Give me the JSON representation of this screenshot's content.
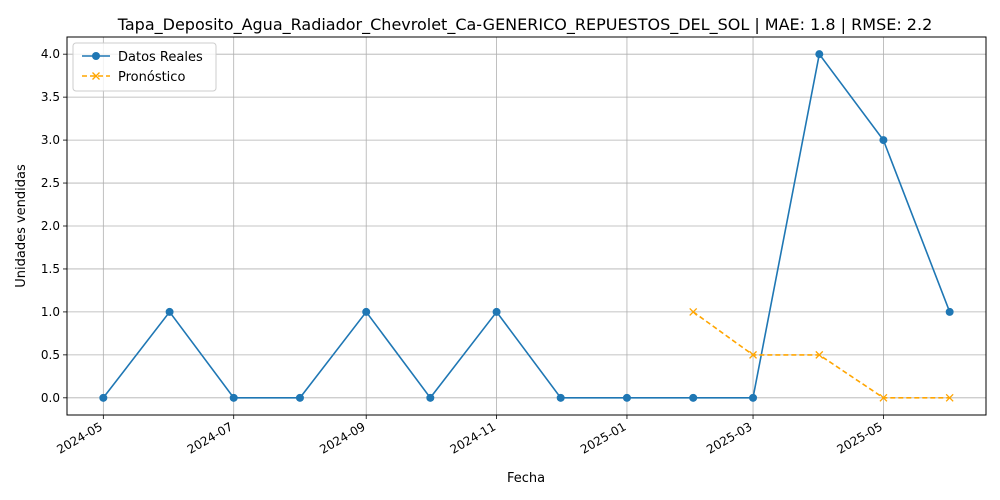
{
  "chart_data": {
    "type": "line",
    "title": "Tapa_Deposito_Agua_Radiador_Chevrolet_Ca-GENERICO_REPUESTOS_DEL_SOL | MAE: 1.8 | RMSE: 2.2",
    "xlabel": "Fecha",
    "ylabel": "Unidades vendidas",
    "ylim": [
      -0.2,
      4.2
    ],
    "yticks": [
      0.0,
      0.5,
      1.0,
      1.5,
      2.0,
      2.5,
      3.0,
      3.5,
      4.0
    ],
    "ytick_labels": [
      "0.0",
      "0.5",
      "1.0",
      "1.5",
      "2.0",
      "2.5",
      "3.0",
      "3.5",
      "4.0"
    ],
    "xlim": [
      "2024-04-14",
      "2025-06-18"
    ],
    "xticks": [
      "2024-05-01",
      "2024-07-01",
      "2024-09-01",
      "2024-11-01",
      "2025-01-01",
      "2025-03-01",
      "2025-05-01"
    ],
    "xtick_labels": [
      "2024-05",
      "2024-07",
      "2024-09",
      "2024-11",
      "2025-01",
      "2025-03",
      "2025-05"
    ],
    "grid": true,
    "legend_position": "top-left",
    "series": [
      {
        "name": "Datos Reales",
        "color": "#1f77b4",
        "style": "solid",
        "marker": "circle",
        "x": [
          "2024-05-01",
          "2024-06-01",
          "2024-07-01",
          "2024-08-01",
          "2024-09-01",
          "2024-10-01",
          "2024-11-01",
          "2024-12-01",
          "2025-01-01",
          "2025-02-01",
          "2025-03-01",
          "2025-04-01",
          "2025-05-01",
          "2025-06-01"
        ],
        "values": [
          0,
          1,
          0,
          0,
          1,
          0,
          1,
          0,
          0,
          0,
          0,
          4,
          3,
          1
        ]
      },
      {
        "name": "Pronóstico",
        "color": "#ffa500",
        "style": "dashed",
        "marker": "x",
        "x": [
          "2025-02-01",
          "2025-03-01",
          "2025-04-01",
          "2025-05-01",
          "2025-06-01"
        ],
        "values": [
          1.0,
          0.5,
          0.5,
          0.0,
          0.0
        ]
      }
    ]
  }
}
